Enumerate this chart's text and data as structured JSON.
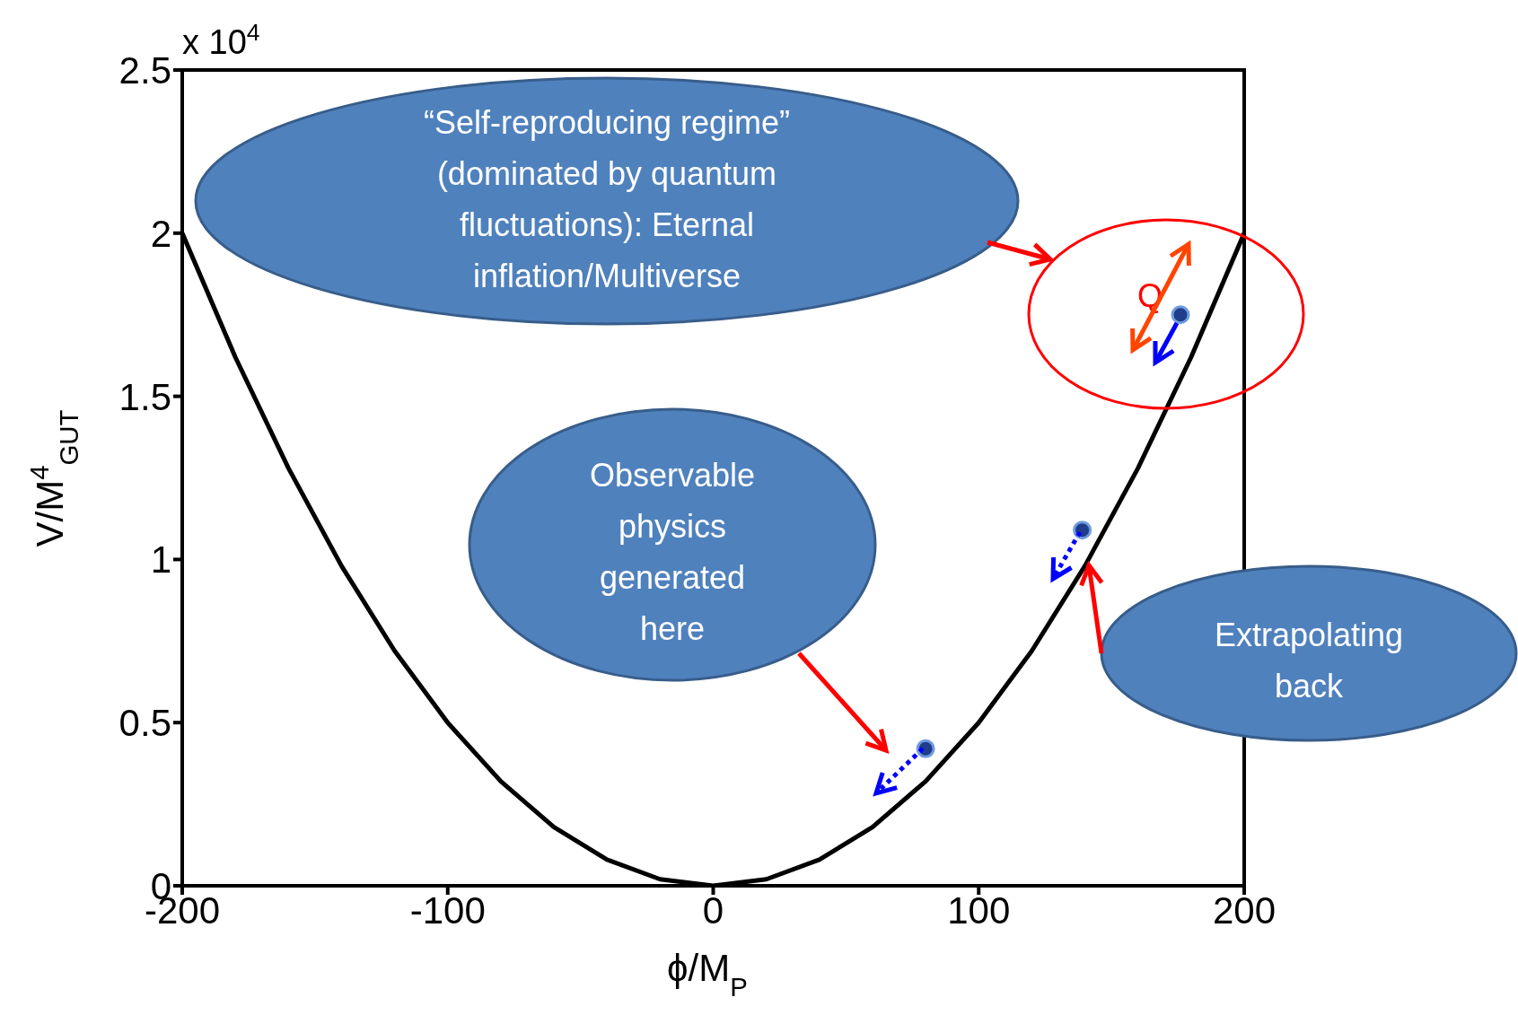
{
  "chart_data": {
    "type": "line",
    "xlabel": "ϕ/M$_{P}$",
    "ylabel": "V/M$^{4}$$_{GUT}$",
    "x": [
      -200,
      -180,
      -160,
      -140,
      -120,
      -100,
      -80,
      -60,
      -40,
      -20,
      0,
      20,
      40,
      60,
      80,
      100,
      120,
      140,
      160,
      180,
      200
    ],
    "series": [
      {
        "color": "#000000",
        "values": [
          2,
          1.62,
          1.28,
          0.98,
          0.72,
          0.5,
          0.32,
          0.18,
          0.08,
          0.02,
          0,
          0.02,
          0.08,
          0.18,
          0.32,
          0.5,
          0.72,
          0.98,
          1.28,
          1.62,
          2
        ]
      },
      {
        "type": "scatter",
        "color": "#1f3d8a",
        "marker": "circle",
        "x": [
          80,
          139,
          176
        ],
        "values": [
          0.42,
          1.09,
          1.75
        ]
      }
    ],
    "xlim": [
      -200,
      200
    ],
    "xticks": [
      -200,
      -100,
      0,
      100,
      200
    ],
    "ylim": [
      0,
      2.5
    ],
    "yticks": [
      0,
      0.5,
      1,
      1.5,
      2,
      2.5
    ],
    "annotations": [
      "x 10$^{4}$",
      "“Self-reproducing regime”\n(dominated by quantum\nfluctuations): Eternal\ninflation/Multiverse",
      "Observable\nphysics\ngenerated\nhere",
      "Extrapolating\nback",
      "Q"
    ]
  }
}
